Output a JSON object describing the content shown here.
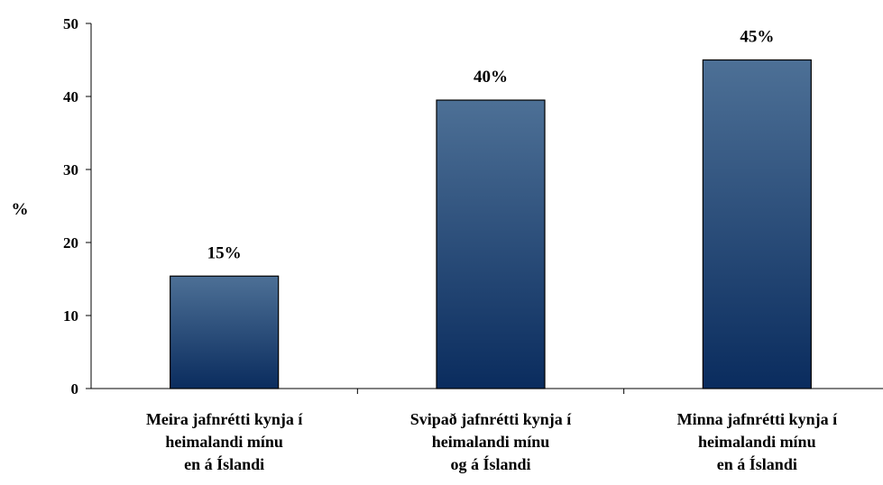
{
  "chart_data": {
    "type": "bar",
    "title": "",
    "xlabel": "",
    "ylabel": "%",
    "ylim": [
      0,
      50
    ],
    "yticks": [
      0,
      10,
      20,
      30,
      40,
      50
    ],
    "grid": false,
    "legend": "none",
    "categories": [
      [
        "Meira jafnrétti kynja í",
        "heimalandi mínu",
        "en á Íslandi"
      ],
      [
        "Svipað jafnrétti kynja í",
        "heimalandi mínu",
        "og á Íslandi"
      ],
      [
        "Minna jafnrétti kynja í",
        "heimalandi mínu",
        "en á Íslandi"
      ]
    ],
    "values": [
      15.4,
      39.5,
      45
    ],
    "data_labels": [
      "15%",
      "40%",
      "45%"
    ],
    "colors": {
      "bar_top": "#4d7096",
      "bar_bottom": "#0a2c5e",
      "bar_outline": "#000000"
    }
  }
}
